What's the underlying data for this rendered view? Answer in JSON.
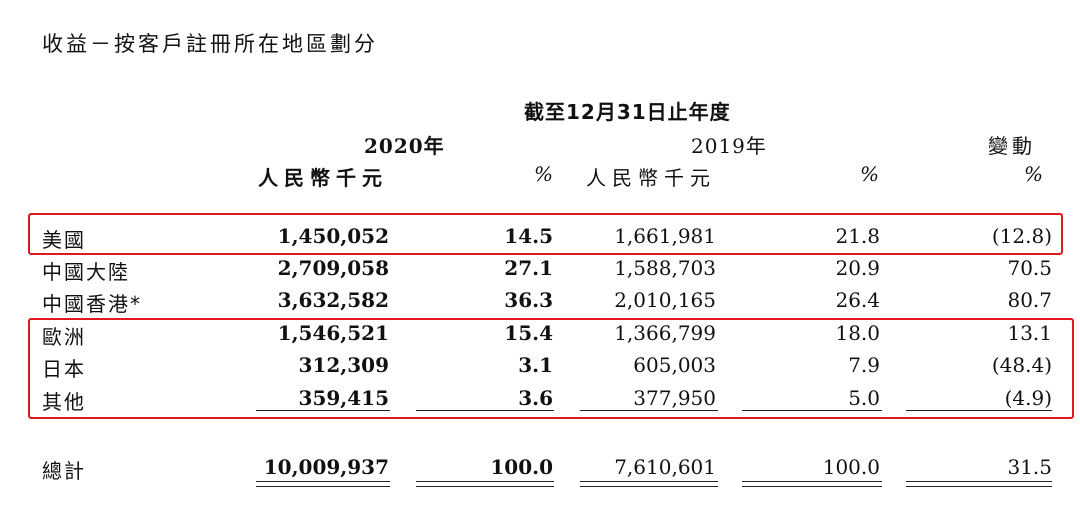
{
  "title": "收益－按客戶註冊所在地區劃分",
  "period_header": "截至12月31日止年度",
  "year_2020": "2020年",
  "year_2019": "2019年",
  "change_header": "變動",
  "unit_label": "人民幣千元",
  "pct_label": "%",
  "rows": [
    {
      "region": "美國",
      "v2020": "1,450,052",
      "p2020": "14.5",
      "v2019": "1,661,981",
      "p2019": "21.8",
      "change": "(12.8)"
    },
    {
      "region": "中國大陸",
      "v2020": "2,709,058",
      "p2020": "27.1",
      "v2019": "1,588,703",
      "p2019": "20.9",
      "change": "70.5"
    },
    {
      "region": "中國香港*",
      "v2020": "3,632,582",
      "p2020": "36.3",
      "v2019": "2,010,165",
      "p2019": "26.4",
      "change": "80.7"
    },
    {
      "region": "歐洲",
      "v2020": "1,546,521",
      "p2020": "15.4",
      "v2019": "1,366,799",
      "p2019": "18.0",
      "change": "13.1"
    },
    {
      "region": "日本",
      "v2020": "312,309",
      "p2020": "3.1",
      "v2019": "605,003",
      "p2019": "7.9",
      "change": "(48.4)"
    },
    {
      "region": "其他",
      "v2020": "359,415",
      "p2020": "3.6",
      "v2019": "377,950",
      "p2019": "5.0",
      "change": "(4.9)"
    }
  ],
  "total": {
    "region": "總計",
    "v2020": "10,009,937",
    "p2020": "100.0",
    "v2019": "7,610,601",
    "p2019": "100.0",
    "change": "31.5"
  },
  "highlight_color": "#e0191e"
}
